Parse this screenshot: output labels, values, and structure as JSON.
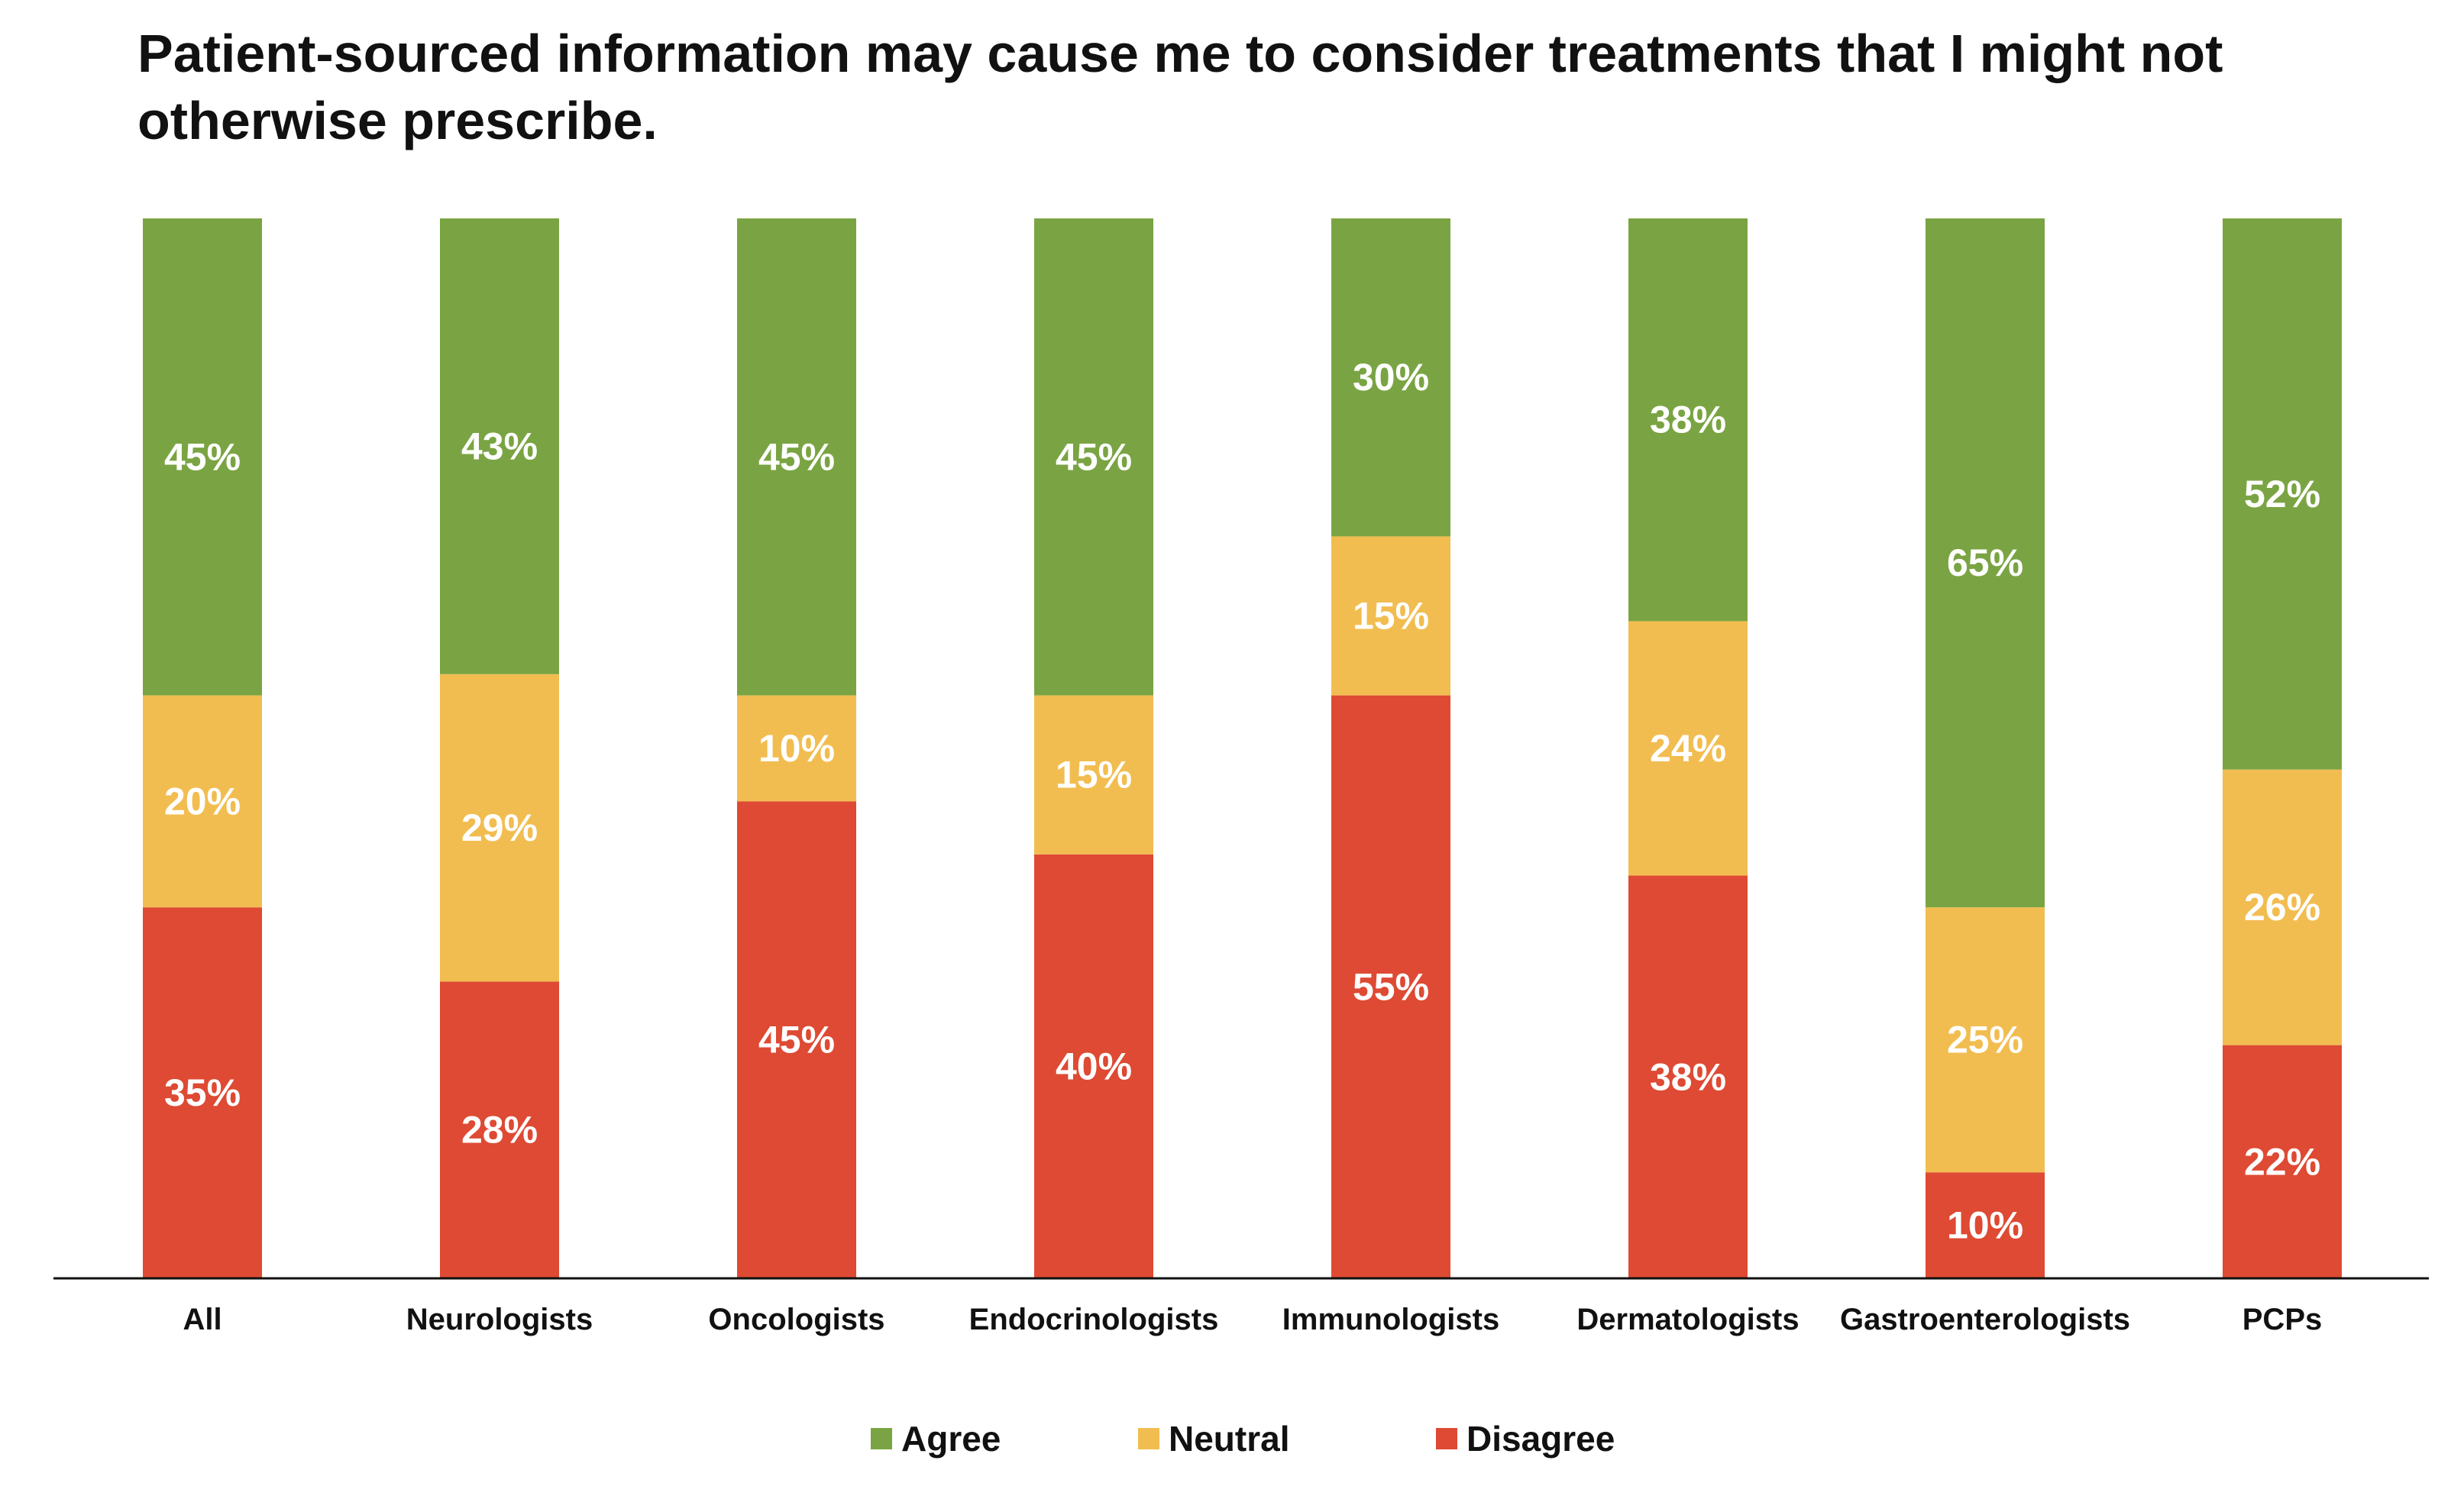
{
  "chart_data": {
    "type": "bar",
    "stacked": true,
    "title": "Patient-sourced information may cause me to consider treatments that I might not otherwise prescribe.",
    "categories": [
      "All",
      "Neurologists",
      "Oncologists",
      "Endocrinologists",
      "Immunologists",
      "Dermatologists",
      "Gastroenterologists",
      "PCPs"
    ],
    "series": [
      {
        "name": "Disagree",
        "color": "#de4a33",
        "values": [
          35,
          28,
          45,
          40,
          55,
          38,
          10,
          22
        ]
      },
      {
        "name": "Neutral",
        "color": "#f2bd50",
        "values": [
          20,
          29,
          10,
          15,
          15,
          24,
          25,
          26
        ]
      },
      {
        "name": "Agree",
        "color": "#7aa443",
        "values": [
          45,
          43,
          45,
          45,
          30,
          38,
          65,
          52
        ]
      }
    ],
    "value_suffix": "%",
    "ylim": [
      0,
      100
    ],
    "grid": false,
    "legend_position": "bottom",
    "legend_order": [
      "Agree",
      "Neutral",
      "Disagree"
    ]
  }
}
